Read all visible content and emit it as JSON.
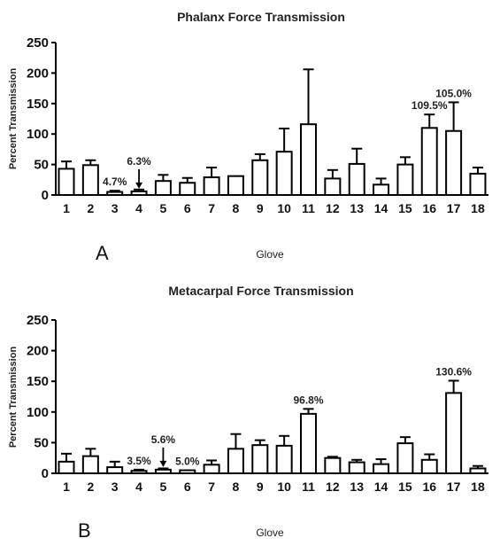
{
  "chart_data": [
    {
      "type": "bar",
      "title": "Phalanx Force Transmission",
      "xlabel": "Glove",
      "ylabel": "Percent Transmission",
      "panel_label": "A",
      "ylim": [
        0,
        250
      ],
      "yticks": [
        0,
        50,
        100,
        150,
        200,
        250
      ],
      "categories": [
        "1",
        "2",
        "3",
        "4",
        "5",
        "6",
        "7",
        "8",
        "9",
        "10",
        "11",
        "12",
        "13",
        "14",
        "15",
        "16",
        "17",
        "18"
      ],
      "values": [
        43,
        49,
        5,
        6,
        23,
        20,
        29,
        31,
        57,
        71,
        116,
        27,
        51,
        17,
        50,
        110,
        105,
        35
      ],
      "error": [
        12,
        8,
        2,
        3,
        10,
        8,
        16,
        0,
        10,
        38,
        90,
        14,
        25,
        10,
        12,
        22,
        47,
        10
      ],
      "annotations": [
        {
          "category": "3",
          "text": "4.7%",
          "arrow": false
        },
        {
          "category": "4",
          "text": "6.3%",
          "arrow": true
        },
        {
          "category": "16",
          "text": "109.5%",
          "arrow": false
        },
        {
          "category": "17",
          "text": "105.0%",
          "arrow": false
        }
      ],
      "grid": false
    },
    {
      "type": "bar",
      "title": "Metacarpal Force Transmission",
      "xlabel": "Glove",
      "ylabel": "Percent Transmission",
      "panel_label": "B",
      "ylim": [
        0,
        250
      ],
      "yticks": [
        0,
        50,
        100,
        150,
        200,
        250
      ],
      "categories": [
        "1",
        "2",
        "3",
        "4",
        "5",
        "6",
        "7",
        "8",
        "9",
        "10",
        "11",
        "12",
        "13",
        "14",
        "15",
        "16",
        "17",
        "18"
      ],
      "values": [
        19,
        28,
        10,
        4,
        6,
        5,
        14,
        40,
        46,
        45,
        97,
        25,
        18,
        15,
        49,
        22,
        131,
        8
      ],
      "error": [
        13,
        12,
        9,
        2,
        2,
        0,
        7,
        24,
        8,
        16,
        8,
        2,
        4,
        8,
        10,
        9,
        20,
        4
      ],
      "annotations": [
        {
          "category": "4",
          "text": "3.5%",
          "arrow": false
        },
        {
          "category": "5",
          "text": "5.6%",
          "arrow": true
        },
        {
          "category": "6",
          "text": "5.0%",
          "arrow": false
        },
        {
          "category": "11",
          "text": "96.8%",
          "arrow": false
        },
        {
          "category": "17",
          "text": "130.6%",
          "arrow": false
        }
      ],
      "grid": false
    }
  ]
}
